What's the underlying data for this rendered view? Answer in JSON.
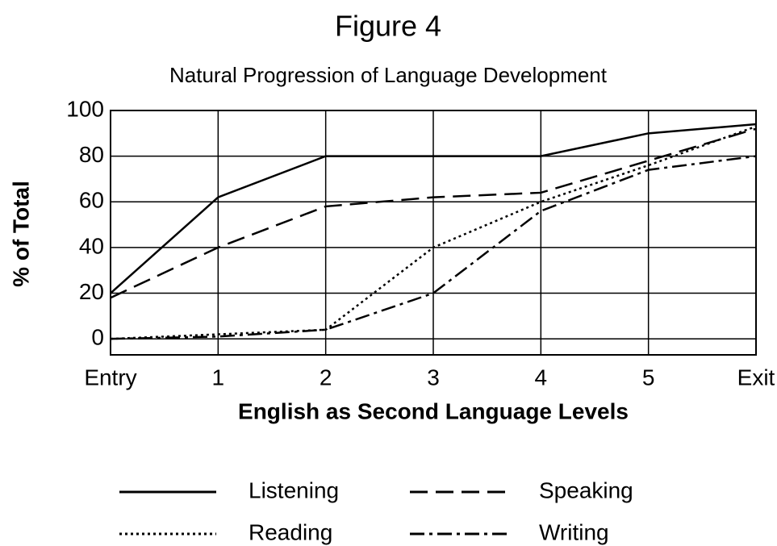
{
  "chart_data": {
    "type": "line",
    "title": "Figure 4",
    "subtitle": "Natural Progression of Language Development",
    "x_label": "English as Second Language Levels",
    "y_label": "% of Total",
    "categories": [
      "Entry",
      "1",
      "2",
      "3",
      "4",
      "5",
      "Exit"
    ],
    "series": [
      {
        "name": "Listening",
        "color": "#000000",
        "dash": "solid",
        "values": [
          20,
          62,
          80,
          80,
          80,
          90,
          94
        ]
      },
      {
        "name": "Speaking",
        "color": "#000000",
        "dash": "dashed",
        "values": [
          18,
          40,
          58,
          62,
          64,
          78,
          92
        ]
      },
      {
        "name": "Reading",
        "color": "#000000",
        "dash": "dotted",
        "values": [
          0,
          2,
          4,
          40,
          60,
          76,
          93
        ]
      },
      {
        "name": "Writing",
        "color": "#000000",
        "dash": "dashdot",
        "values": [
          0,
          1,
          4,
          20,
          56,
          74,
          80
        ]
      }
    ],
    "ylim": [
      -7,
      100
    ],
    "yticks": [
      0,
      20,
      40,
      60,
      80,
      100
    ],
    "grid": true,
    "legend": "bottom"
  }
}
